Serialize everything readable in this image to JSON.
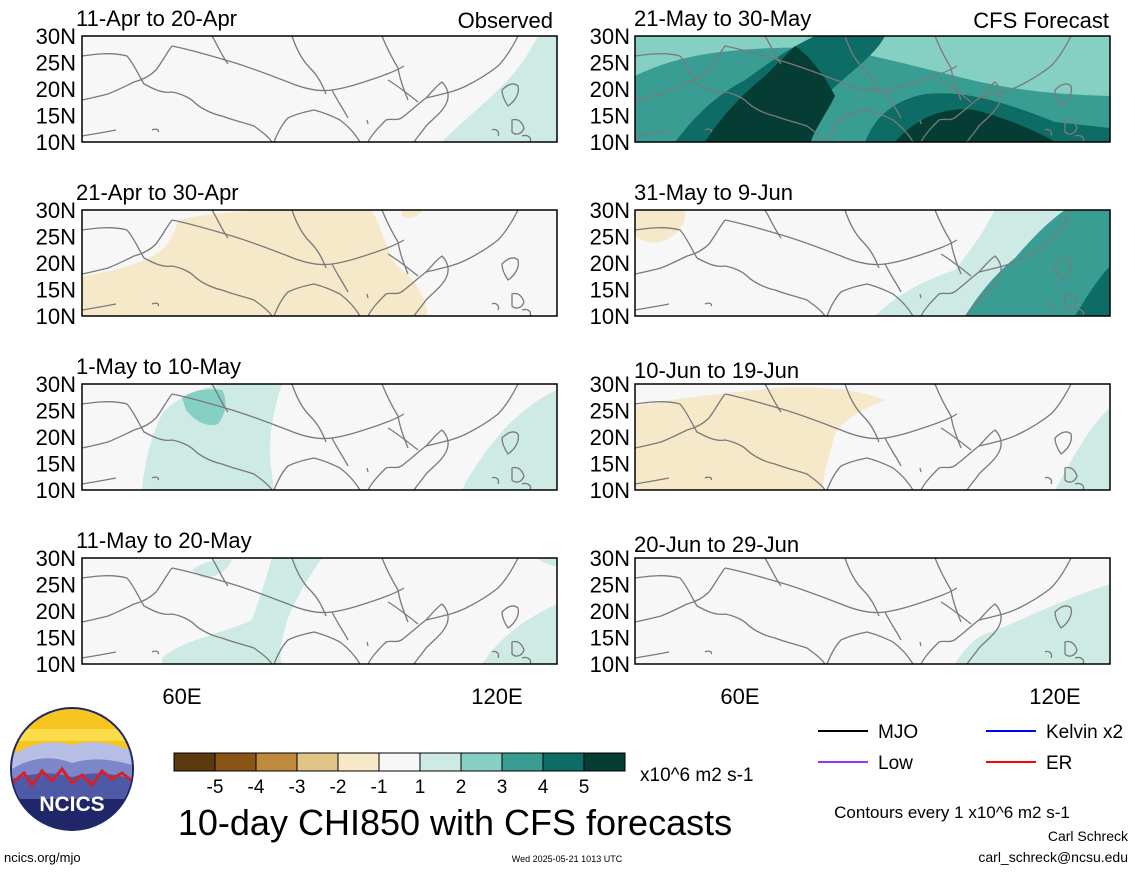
{
  "panels": [
    {
      "title": "11-Apr to 20-Apr",
      "tag": "Observed"
    },
    {
      "title": "21-Apr to 30-Apr",
      "tag": ""
    },
    {
      "title": "1-May to 10-May",
      "tag": ""
    },
    {
      "title": "11-May to 20-May",
      "tag": ""
    },
    {
      "title": "21-May to 30-May",
      "tag": "CFS Forecast"
    },
    {
      "title": "31-May to 9-Jun",
      "tag": ""
    },
    {
      "title": "10-Jun to 19-Jun",
      "tag": ""
    },
    {
      "title": "20-Jun to 29-Jun",
      "tag": ""
    }
  ],
  "lat_ticks": [
    "30N",
    "25N",
    "20N",
    "15N",
    "10N"
  ],
  "lon_ticks": [
    "60E",
    "120E"
  ],
  "colorbar": {
    "colors": [
      "#5a3a0e",
      "#8a5416",
      "#c08a3c",
      "#e1c487",
      "#f6e9c9",
      "#f7f7f7",
      "#cdeae5",
      "#86cfc3",
      "#3a9d93",
      "#0d6c65",
      "#053d34"
    ],
    "labels": [
      "-5",
      "-4",
      "-3",
      "-2",
      "-1",
      "1",
      "2",
      "3",
      "4",
      "5"
    ],
    "units": "x10^6 m2 s-1"
  },
  "legend": [
    {
      "label": "MJO",
      "color": "#000000"
    },
    {
      "label": "Kelvin x2",
      "color": "#0000ff"
    },
    {
      "label": "Low",
      "color": "#9b30ff"
    },
    {
      "label": "ER",
      "color": "#ff0000"
    }
  ],
  "contour_note": "Contours every 1 x10^6 m2 s-1",
  "main_title": "10-day CHI850 with CFS forecasts",
  "logo_text": "NCICS",
  "footer": {
    "left": "ncics.org/mjo",
    "center": "Wed 2025-05-21 1013 UTC",
    "author": "Carl Schreck",
    "email": "carl_schreck@ncsu.edu"
  }
}
